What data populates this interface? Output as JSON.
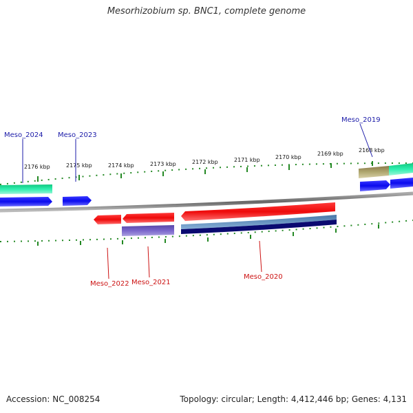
{
  "title": "Mesorhizobium sp. BNC1, complete genome",
  "footer": {
    "accession": "Accession: NC_008254",
    "topology": "Topology: circular; Length: 4,412,446 bp; Genes: 4,131"
  },
  "ticks": [
    {
      "label": "2176 kbp"
    },
    {
      "label": "2175 kbp"
    },
    {
      "label": "2174 kbp"
    },
    {
      "label": "2173 kbp"
    },
    {
      "label": "2172 kbp"
    },
    {
      "label": "2171 kbp"
    },
    {
      "label": "2170 kbp"
    },
    {
      "label": "2169 kbp"
    },
    {
      "label": "2168 kbp"
    }
  ],
  "genes": {
    "meso_2024": "Meso_2024",
    "meso_2023": "Meso_2023",
    "meso_2019": "Meso_2019",
    "meso_2022": "Meso_2022",
    "meso_2021": "Meso_2021",
    "meso_2020": "Meso_2020"
  },
  "colors": {
    "forward_label": "#1a1aa8",
    "reverse_label": "#cc1111",
    "gene_blue": "#0a0aee",
    "gene_red": "#ee0a0a",
    "cds_teal": "#22e8a0",
    "cds_khaki": "#b0a870",
    "cds_purple": "#7a66cc",
    "cds_steel": "#5a88b8",
    "cds_navy": "#0a0a70",
    "backbone": "#888888",
    "tick": "#228822"
  }
}
